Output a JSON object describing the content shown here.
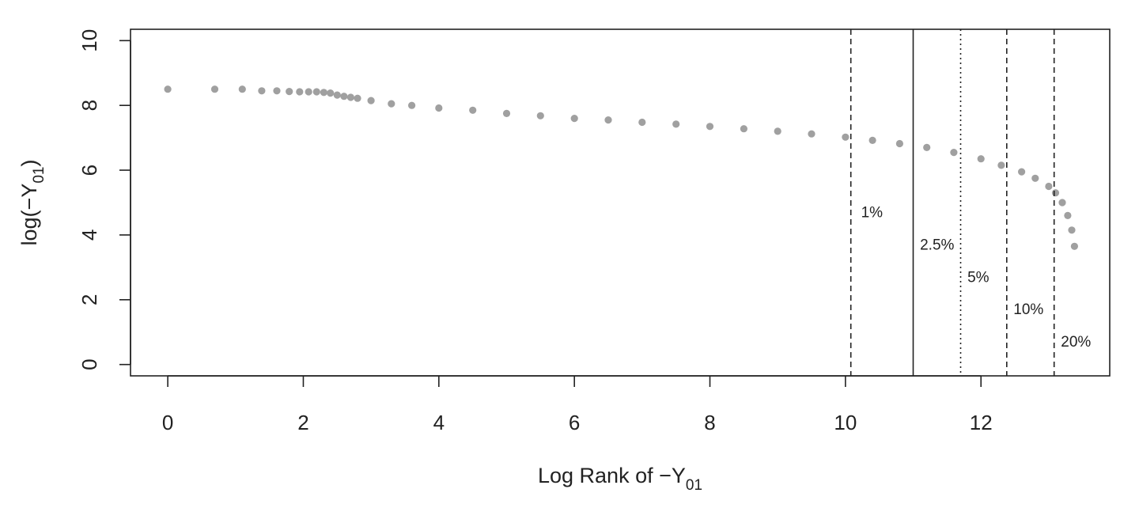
{
  "chart_data": {
    "type": "scatter",
    "title": "",
    "xlabel": {
      "main": "Log Rank of −Y",
      "sub": "01"
    },
    "ylabel": {
      "pre": "log(−Y",
      "sub": "01",
      "post": ")"
    },
    "xlim": [
      -0.55,
      13.9
    ],
    "ylim": [
      -0.35,
      10.35
    ],
    "xticks": [
      0,
      2,
      4,
      6,
      8,
      10,
      12
    ],
    "yticks": [
      0,
      2,
      4,
      6,
      8,
      10
    ],
    "xtick_labels": [
      "0",
      "2",
      "4",
      "6",
      "8",
      "10",
      "12"
    ],
    "ytick_labels": [
      "0",
      "2",
      "4",
      "6",
      "8",
      "10"
    ],
    "grid": false,
    "point_color": "#a0a0a0",
    "series": [
      {
        "x": [
          0,
          0.693,
          1.099,
          1.386,
          1.609,
          1.792,
          1.946,
          2.079,
          2.197,
          2.303,
          2.4,
          2.5,
          2.6,
          2.7,
          2.8,
          3.0,
          3.3,
          3.6,
          4.0,
          4.5,
          5.0,
          5.5,
          6.0,
          6.5,
          7.0,
          7.5,
          8.0,
          8.5,
          9.0,
          9.5,
          10.0,
          10.4,
          10.8,
          11.2,
          11.6,
          12.0,
          12.3,
          12.6,
          12.8,
          13.0,
          13.1,
          13.2,
          13.28,
          13.34,
          13.38
        ],
        "y": [
          8.5,
          8.5,
          8.5,
          8.45,
          8.45,
          8.43,
          8.42,
          8.42,
          8.42,
          8.4,
          8.38,
          8.32,
          8.28,
          8.25,
          8.22,
          8.15,
          8.05,
          8.0,
          7.92,
          7.85,
          7.75,
          7.68,
          7.6,
          7.55,
          7.48,
          7.42,
          7.35,
          7.28,
          7.2,
          7.12,
          7.02,
          6.92,
          6.82,
          6.7,
          6.55,
          6.35,
          6.15,
          5.95,
          5.75,
          5.5,
          5.3,
          5.0,
          4.6,
          4.15,
          3.65
        ]
      }
    ],
    "reference_lines": [
      {
        "x": 10.08,
        "style": "dashed",
        "label": "1%",
        "label_x": 10.23,
        "label_y": 4.55
      },
      {
        "x": 11.0,
        "style": "solid",
        "label": "2.5%",
        "label_x": 11.1,
        "label_y": 3.55
      },
      {
        "x": 11.7,
        "style": "dotted",
        "label": "5%",
        "label_x": 11.8,
        "label_y": 2.55
      },
      {
        "x": 12.38,
        "style": "dashed",
        "label": "10%",
        "label_x": 12.48,
        "label_y": 1.55
      },
      {
        "x": 13.08,
        "style": "dashed",
        "label": "20%",
        "label_x": 13.18,
        "label_y": 0.55
      }
    ]
  }
}
